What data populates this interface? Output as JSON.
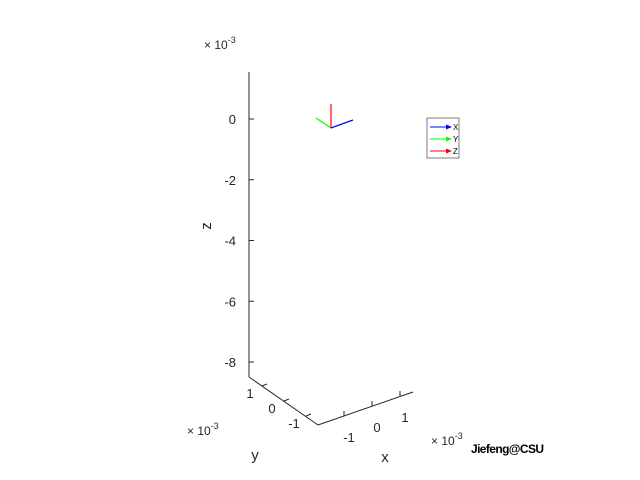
{
  "chart_data": {
    "type": "line",
    "title": "",
    "xlabel": "x",
    "ylabel": "y",
    "zlabel": "z",
    "x_exponent": "× 10",
    "x_exponent_power": "-3",
    "y_exponent": "× 10",
    "y_exponent_power": "-3",
    "z_exponent": "× 10",
    "z_exponent_power": "-3",
    "xlim": [
      -1.5,
      1.5
    ],
    "ylim": [
      -1.5,
      1.5
    ],
    "zlim": [
      -8.5,
      1.5
    ],
    "x_ticks": [
      {
        "value": -1,
        "label": "-1"
      },
      {
        "value": 0,
        "label": "0"
      },
      {
        "value": 1,
        "label": "1"
      }
    ],
    "y_ticks": [
      {
        "value": -1,
        "label": "-1"
      },
      {
        "value": 0,
        "label": "0"
      },
      {
        "value": 1,
        "label": "1"
      }
    ],
    "z_ticks": [
      {
        "value": 0,
        "label": "0"
      },
      {
        "value": -2,
        "label": "-2"
      },
      {
        "value": -4,
        "label": "-4"
      },
      {
        "value": -6,
        "label": "-6"
      },
      {
        "value": -8,
        "label": "-8"
      }
    ],
    "grid": false,
    "legend_position": "right",
    "series": [
      {
        "name": "X",
        "color": "#0000ff",
        "start": [
          0,
          0,
          0
        ],
        "end": [
          1,
          0,
          0
        ]
      },
      {
        "name": "Y",
        "color": "#00ff00",
        "start": [
          0,
          0,
          0
        ],
        "end": [
          0,
          1,
          0
        ]
      },
      {
        "name": "Z",
        "color": "#ff0000",
        "start": [
          0,
          0,
          0
        ],
        "end": [
          0,
          0,
          1
        ]
      }
    ]
  },
  "credit": "Jiefeng@CSU"
}
